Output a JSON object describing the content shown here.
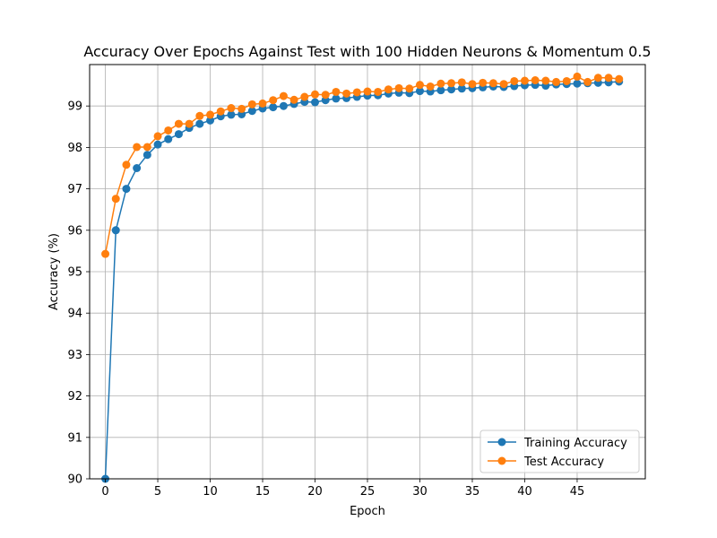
{
  "chart_data": {
    "type": "line",
    "title": "Accuracy Over Epochs Against Test with 100 Hidden Neurons & Momentum 0.5",
    "xlabel": "Epoch",
    "ylabel": "Accuracy (%)",
    "xlim": [
      -1.5,
      51.5
    ],
    "ylim": [
      90,
      100
    ],
    "xticks": [
      0,
      5,
      10,
      15,
      20,
      25,
      30,
      35,
      40,
      45
    ],
    "yticks": [
      90,
      91,
      92,
      93,
      94,
      95,
      96,
      97,
      98,
      99
    ],
    "grid": true,
    "legend_position": "lower right",
    "x": [
      0,
      1,
      2,
      3,
      4,
      5,
      6,
      7,
      8,
      9,
      10,
      11,
      12,
      13,
      14,
      15,
      16,
      17,
      18,
      19,
      20,
      21,
      22,
      23,
      24,
      25,
      26,
      27,
      28,
      29,
      30,
      31,
      32,
      33,
      34,
      35,
      36,
      37,
      38,
      39,
      40,
      41,
      42,
      43,
      44,
      45,
      46,
      47,
      48,
      49
    ],
    "series": [
      {
        "name": "Training Accuracy",
        "color": "#1f77b4",
        "values": [
          90.0,
          96.0,
          97.0,
          97.5,
          97.82,
          98.07,
          98.2,
          98.32,
          98.47,
          98.57,
          98.65,
          98.75,
          98.79,
          98.8,
          98.88,
          98.94,
          98.97,
          99.0,
          99.05,
          99.1,
          99.09,
          99.14,
          99.18,
          99.19,
          99.22,
          99.25,
          99.26,
          99.3,
          99.32,
          99.31,
          99.36,
          99.35,
          99.38,
          99.4,
          99.42,
          99.43,
          99.45,
          99.47,
          99.46,
          99.48,
          99.5,
          99.51,
          99.49,
          99.52,
          99.53,
          99.54,
          99.55,
          99.56,
          99.57,
          99.59
        ]
      },
      {
        "name": "Test Accuracy",
        "color": "#ff7f0e",
        "values": [
          95.43,
          96.76,
          97.58,
          98.01,
          98.01,
          98.27,
          98.41,
          98.57,
          98.57,
          98.76,
          98.79,
          98.87,
          98.95,
          98.93,
          99.04,
          99.06,
          99.14,
          99.24,
          99.15,
          99.22,
          99.28,
          99.27,
          99.34,
          99.3,
          99.33,
          99.35,
          99.34,
          99.4,
          99.43,
          99.42,
          99.51,
          99.47,
          99.54,
          99.55,
          99.57,
          99.53,
          99.56,
          99.55,
          99.53,
          99.6,
          99.61,
          99.62,
          99.61,
          99.58,
          99.6,
          99.71,
          99.58,
          99.68,
          99.68,
          99.65
        ]
      }
    ]
  }
}
